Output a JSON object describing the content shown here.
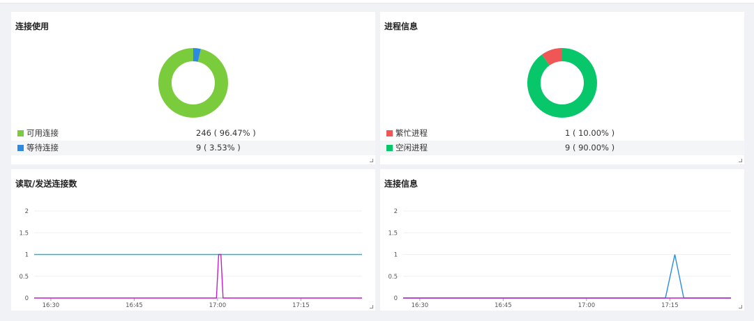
{
  "panels": {
    "connections": {
      "title": "连接使用",
      "legend": [
        {
          "label": "可用连接",
          "value": "246 ( 96.47% )",
          "color": "#7acc3c",
          "fraction": 0.9647
        },
        {
          "label": "等待连接",
          "value": "9 ( 3.53% )",
          "color": "#2c8be0",
          "fraction": 0.0353
        }
      ]
    },
    "processes": {
      "title": "进程信息",
      "legend": [
        {
          "label": "繁忙进程",
          "value": "1 ( 10.00% )",
          "color": "#f05656",
          "fraction": 0.1
        },
        {
          "label": "空闲进程",
          "value": "9 ( 90.00% )",
          "color": "#08c76b",
          "fraction": 0.9
        }
      ]
    },
    "readsend": {
      "title": "读取/发送连接数"
    },
    "conninfo": {
      "title": "连接信息"
    }
  },
  "chart_data": [
    {
      "type": "pie",
      "title": "连接使用",
      "categories": [
        "可用连接",
        "等待连接"
      ],
      "values": [
        246,
        9
      ]
    },
    {
      "type": "pie",
      "title": "进程信息",
      "categories": [
        "繁忙进程",
        "空闲进程"
      ],
      "values": [
        1,
        9
      ]
    },
    {
      "type": "line",
      "title": "读取/发送连接数",
      "x_ticks": [
        "16:30",
        "16:45",
        "17:00",
        "17:15"
      ],
      "y_ticks": [
        "0",
        "0.5",
        "1",
        "1.5",
        "2"
      ],
      "ylim": [
        0,
        2
      ],
      "xlim_minutes": [
        27,
        86
      ],
      "series": [
        {
          "color": "#1fb5d4",
          "points": [
            [
              27,
              1
            ],
            [
              86,
              1
            ]
          ]
        },
        {
          "color": "#c21fc9",
          "points": [
            [
              27,
              0
            ],
            [
              59.8,
              0
            ],
            [
              60.2,
              1
            ],
            [
              60.6,
              1
            ],
            [
              61.0,
              0
            ],
            [
              86,
              0
            ]
          ]
        }
      ]
    },
    {
      "type": "line",
      "title": "连接信息",
      "x_ticks": [
        "16:30",
        "16:45",
        "17:00",
        "17:15"
      ],
      "y_ticks": [
        "0",
        "0.5",
        "1",
        "1.5",
        "2"
      ],
      "ylim": [
        0,
        2
      ],
      "xlim_minutes": [
        27,
        86
      ],
      "series": [
        {
          "color": "#2c8be0",
          "points": [
            [
              27,
              0
            ],
            [
              74.2,
              0
            ],
            [
              75.9,
              1
            ],
            [
              77.5,
              0
            ],
            [
              86,
              0
            ]
          ]
        },
        {
          "color": "#c21fc9",
          "points": [
            [
              27,
              0
            ],
            [
              86,
              0
            ]
          ]
        }
      ]
    }
  ]
}
